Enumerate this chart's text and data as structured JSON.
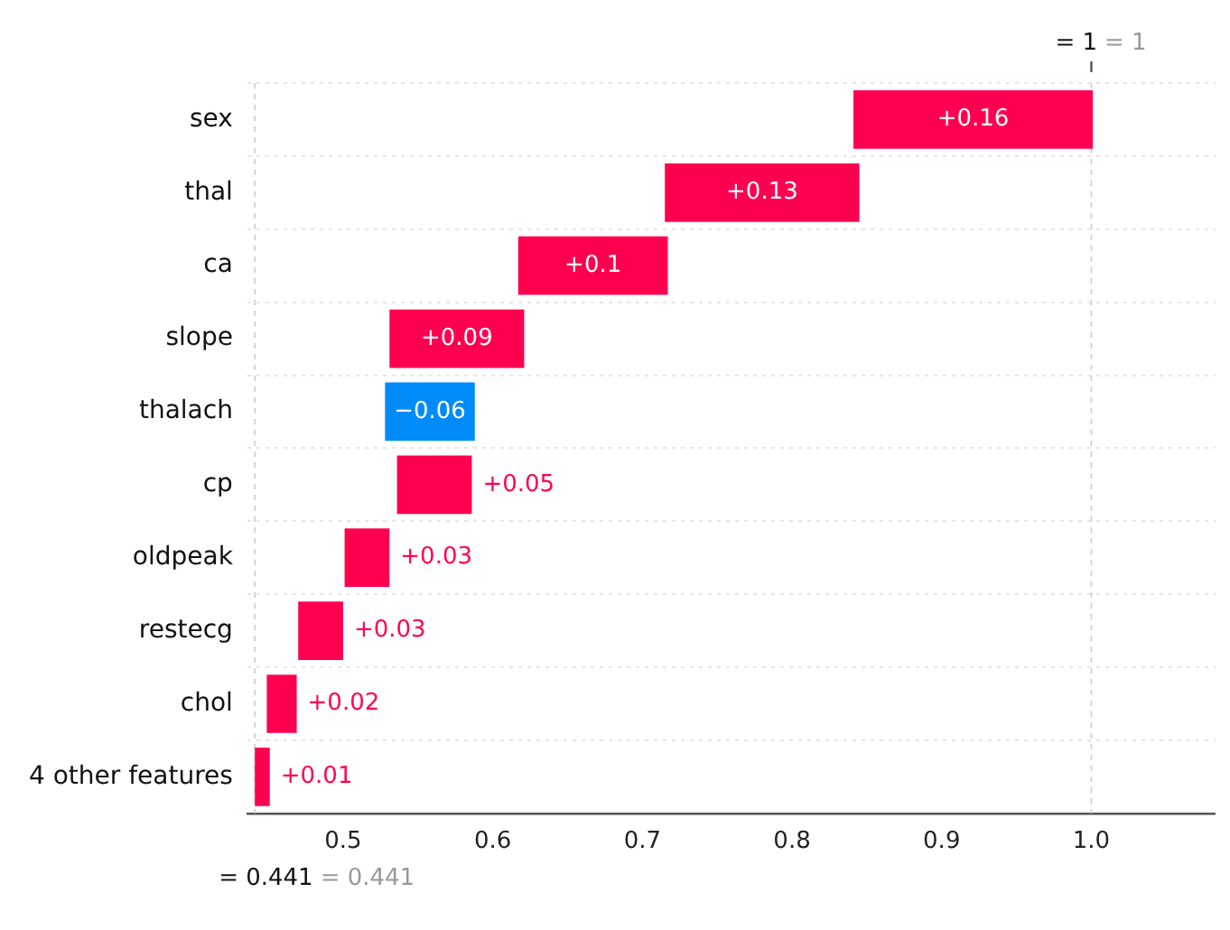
{
  "chart_data": {
    "type": "bar",
    "orientation": "horizontal",
    "categories": [
      "sex",
      "thal",
      "ca",
      "slope",
      "thalach",
      "cp",
      "oldpeak",
      "restecg",
      "chol",
      "4 other features"
    ],
    "values": [
      0.16,
      0.13,
      0.1,
      0.09,
      -0.06,
      0.05,
      0.03,
      0.03,
      0.02,
      0.01
    ],
    "base": [
      0.841,
      0.715,
      0.617,
      0.531,
      0.588,
      0.536,
      0.501,
      0.47,
      0.449,
      0.441
    ],
    "colors": [
      "#ff0051",
      "#ff0051",
      "#ff0051",
      "#ff0051",
      "#008bfb",
      "#ff0051",
      "#ff0051",
      "#ff0051",
      "#ff0051",
      "#ff0051"
    ],
    "value_labels": [
      "+0.16",
      "+0.13",
      "+0.1",
      "+0.09",
      "−0.06",
      "+0.05",
      "+0.03",
      "+0.03",
      "+0.02",
      "+0.01"
    ],
    "xlim": [
      0.436,
      1.083
    ],
    "xticks": [
      0.5,
      0.6,
      0.7,
      0.8,
      0.9,
      {
        "value": 1,
        "label": "1.0"
      }
    ],
    "ref_lines": [
      {
        "axis": "x",
        "value": 1,
        "label": null,
        "color": "#cccccc",
        "line_style": "dashed"
      },
      {
        "axis": "x",
        "value": 0.441,
        "label": null,
        "color": "#cccccc",
        "line_style": "dashed"
      }
    ],
    "annotations": [
      "= 1",
      "= 1",
      "= 0.441",
      "= 0.441"
    ],
    "grid": "y",
    "legend": false
  }
}
